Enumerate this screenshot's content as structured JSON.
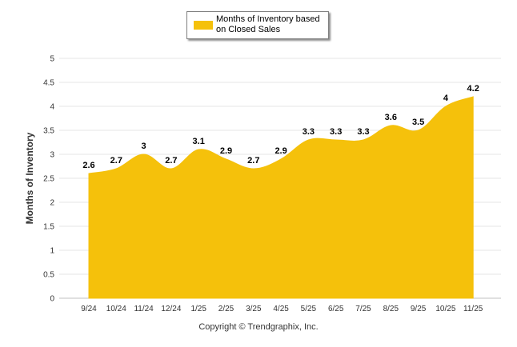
{
  "chart_data": {
    "type": "area",
    "categories": [
      "9/24",
      "10/24",
      "11/24",
      "12/24",
      "1/25",
      "2/25",
      "3/25",
      "4/25",
      "5/25",
      "6/25",
      "7/25",
      "8/25",
      "9/25",
      "10/25",
      "11/25"
    ],
    "series": [
      {
        "name": "Months of Inventory based on Closed Sales",
        "values": [
          2.6,
          2.7,
          3,
          2.7,
          3.1,
          2.9,
          2.7,
          2.9,
          3.3,
          3.3,
          3.3,
          3.6,
          3.5,
          4,
          4.2
        ],
        "color": "#f5c10b"
      }
    ],
    "data_labels": [
      "2.6",
      "2.7",
      "3",
      "2.7",
      "3.1",
      "2.9",
      "2.7",
      "2.9",
      "3.3",
      "3.3",
      "3.3",
      "3.6",
      "3.5",
      "4",
      "4.2"
    ],
    "yticks": [
      "0",
      "0.5",
      "1",
      "1.5",
      "2",
      "2.5",
      "3",
      "3.5",
      "4",
      "4.5",
      "5"
    ],
    "ylabel": "Months of Inventory",
    "xlabel": "",
    "ylim": [
      0,
      5
    ],
    "grid": true,
    "legend_position": "top-center"
  },
  "legend": {
    "label": "Months of Inventory based on Closed Sales",
    "color": "#f5c10b"
  },
  "footer": {
    "copyright": "Copyright © Trendgraphix, Inc."
  }
}
